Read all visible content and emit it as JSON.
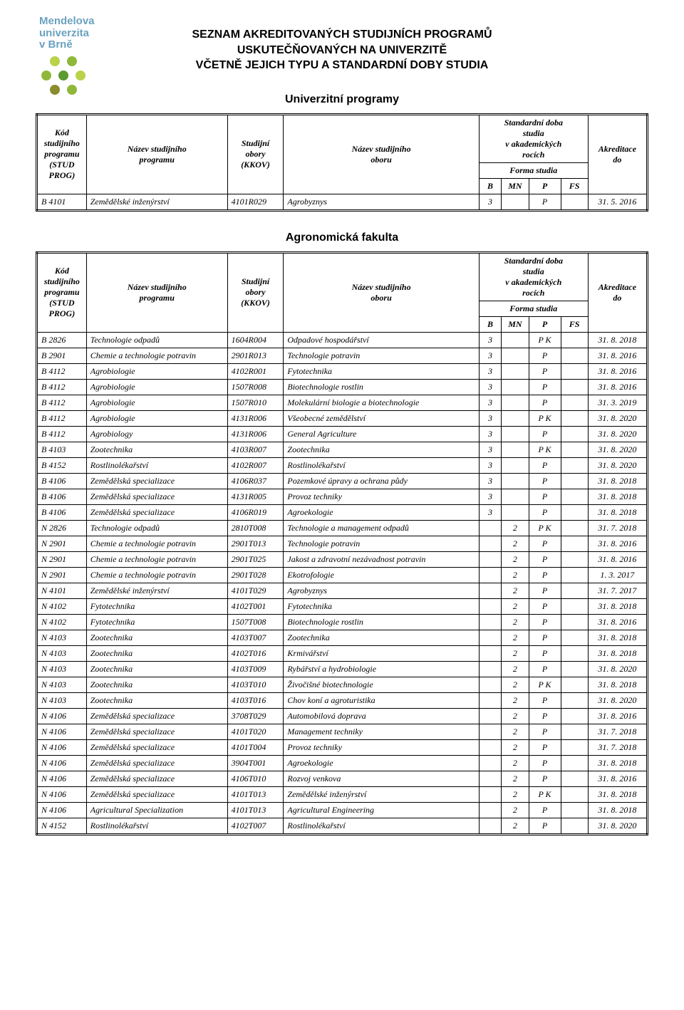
{
  "logo": {
    "line1": "Mendelova",
    "line2": "univerzita",
    "line3": "v Brně",
    "colors": {
      "text": "#6aa2c0",
      "dot_green_light": "#b9d24a",
      "dot_green_med": "#8fb83b",
      "dot_green_dark": "#5d9a2f",
      "dot_olive": "#8a8c2e"
    }
  },
  "header": {
    "line1": "SEZNAM AKREDITOVANÝCH STUDIJNÍCH PROGRAMŮ",
    "line2": "USKUTEČŇOVANÝCH NA UNIVERZITĚ",
    "line3": "VČETNĚ JEJICH TYPU A STANDARDNÍ DOBY STUDIA"
  },
  "section_univerzitni": "Univerzitní programy",
  "section_agronomicka": "Agronomická fakulta",
  "table_headers": {
    "kod": "Kód studijního programu (STUD PROG)",
    "kod_short_line1": "Kód",
    "kod_short_line2": "studijního",
    "kod_short_line3": "programu",
    "kod_short_line4": "(STUD",
    "kod_short_line5": "PROG)",
    "nazev_prog_l1": "Název studijního",
    "nazev_prog_l2": "programu",
    "studijni_l1": "Studijní",
    "studijni_l2": "obory",
    "studijni_l3": "(KKOV)",
    "nazev_obor_l1": "Název studijního",
    "nazev_obor_l2": "oboru",
    "std_doba_l1": "Standardní doba",
    "std_doba_l2": "studia",
    "std_doba_l3": "v akademických",
    "std_doba_l4": "rocích",
    "forma": "Forma studia",
    "akred_l1": "Akreditace",
    "akred_l2": "do",
    "B": "B",
    "MN": "MN",
    "P": "P",
    "FS": "FS"
  },
  "univerzitni_rows": [
    {
      "kod": "B 4101",
      "pname": "Zemědělské inženýrství",
      "kkov": "4101R029",
      "oname": "Agrobyznys",
      "b": "3",
      "mn": "",
      "p": "P",
      "fs": "",
      "akr": "31. 5. 2016"
    }
  ],
  "agronomicka_rows": [
    {
      "kod": "B 2826",
      "pname": "Technologie odpadů",
      "kkov": "1604R004",
      "oname": "Odpadové hospodářství",
      "b": "3",
      "mn": "",
      "p": "P K",
      "fs": "",
      "akr": "31. 8. 2018"
    },
    {
      "kod": "B 2901",
      "pname": "Chemie a technologie potravin",
      "kkov": "2901R013",
      "oname": "Technologie potravin",
      "b": "3",
      "mn": "",
      "p": "P",
      "fs": "",
      "akr": "31. 8. 2016"
    },
    {
      "kod": "B 4112",
      "pname": "Agrobiologie",
      "kkov": "4102R001",
      "oname": "Fytotechnika",
      "b": "3",
      "mn": "",
      "p": "P",
      "fs": "",
      "akr": "31. 8. 2016"
    },
    {
      "kod": "B 4112",
      "pname": "Agrobiologie",
      "kkov": "1507R008",
      "oname": "Biotechnologie rostlin",
      "b": "3",
      "mn": "",
      "p": "P",
      "fs": "",
      "akr": "31. 8. 2016"
    },
    {
      "kod": "B 4112",
      "pname": "Agrobiologie",
      "kkov": "1507R010",
      "oname": "Molekulární biologie a biotechnologie",
      "b": "3",
      "mn": "",
      "p": "P",
      "fs": "",
      "akr": "31. 3. 2019"
    },
    {
      "kod": "B 4112",
      "pname": "Agrobiologie",
      "kkov": "4131R006",
      "oname": "Všeobecné zemědělství",
      "b": "3",
      "mn": "",
      "p": "P K",
      "fs": "",
      "akr": "31. 8. 2020"
    },
    {
      "kod": "B 4112",
      "pname": "Agrobiology",
      "kkov": "4131R006",
      "oname": "General Agriculture",
      "b": "3",
      "mn": "",
      "p": "P",
      "fs": "",
      "akr": "31. 8. 2020"
    },
    {
      "kod": "B 4103",
      "pname": "Zootechnika",
      "kkov": "4103R007",
      "oname": "Zootechnika",
      "b": "3",
      "mn": "",
      "p": "P K",
      "fs": "",
      "akr": "31. 8. 2020"
    },
    {
      "kod": "B 4152",
      "pname": "Rostlinolékařství",
      "kkov": "4102R007",
      "oname": "Rostlinolékařství",
      "b": "3",
      "mn": "",
      "p": "P",
      "fs": "",
      "akr": "31. 8. 2020"
    },
    {
      "kod": "B 4106",
      "pname": "Zemědělská specializace",
      "kkov": "4106R037",
      "oname": "Pozemkové úpravy a ochrana půdy",
      "b": "3",
      "mn": "",
      "p": "P",
      "fs": "",
      "akr": "31. 8. 2018"
    },
    {
      "kod": "B 4106",
      "pname": "Zemědělská specializace",
      "kkov": "4131R005",
      "oname": "Provoz techniky",
      "b": "3",
      "mn": "",
      "p": "P",
      "fs": "",
      "akr": "31. 8. 2018"
    },
    {
      "kod": "B 4106",
      "pname": "Zemědělská specializace",
      "kkov": "4106R019",
      "oname": "Agroekologie",
      "b": "3",
      "mn": "",
      "p": "P",
      "fs": "",
      "akr": "31. 8. 2018"
    },
    {
      "kod": "N 2826",
      "pname": "Technologie odpadů",
      "kkov": "2810T008",
      "oname": "Technologie a management odpadů",
      "b": "",
      "mn": "2",
      "p": "P K",
      "fs": "",
      "akr": "31. 7. 2018"
    },
    {
      "kod": "N 2901",
      "pname": "Chemie a technologie potravin",
      "kkov": "2901T013",
      "oname": "Technologie potravin",
      "b": "",
      "mn": "2",
      "p": "P",
      "fs": "",
      "akr": "31. 8. 2016"
    },
    {
      "kod": "N 2901",
      "pname": "Chemie a technologie potravin",
      "kkov": "2901T025",
      "oname": "Jakost a zdravotní nezávadnost potravin",
      "b": "",
      "mn": "2",
      "p": "P",
      "fs": "",
      "akr": "31. 8. 2016"
    },
    {
      "kod": "N 2901",
      "pname": "Chemie a technologie potravin",
      "kkov": "2901T028",
      "oname": "Ekotrofologie",
      "b": "",
      "mn": "2",
      "p": "P",
      "fs": "",
      "akr": "1. 3. 2017"
    },
    {
      "kod": "N 4101",
      "pname": "Zemědělské inženýrství",
      "kkov": "4101T029",
      "oname": "Agrobyznys",
      "b": "",
      "mn": "2",
      "p": "P",
      "fs": "",
      "akr": "31. 7. 2017"
    },
    {
      "kod": "N 4102",
      "pname": "Fytotechnika",
      "kkov": "4102T001",
      "oname": "Fytotechnika",
      "b": "",
      "mn": "2",
      "p": "P",
      "fs": "",
      "akr": "31. 8. 2018"
    },
    {
      "kod": "N 4102",
      "pname": "Fytotechnika",
      "kkov": "1507T008",
      "oname": "Biotechnologie rostlin",
      "b": "",
      "mn": "2",
      "p": "P",
      "fs": "",
      "akr": "31. 8. 2016"
    },
    {
      "kod": "N 4103",
      "pname": "Zootechnika",
      "kkov": "4103T007",
      "oname": "Zootechnika",
      "b": "",
      "mn": "2",
      "p": "P",
      "fs": "",
      "akr": "31. 8. 2018"
    },
    {
      "kod": "N 4103",
      "pname": "Zootechnika",
      "kkov": "4102T016",
      "oname": "Krmivářství",
      "b": "",
      "mn": "2",
      "p": "P",
      "fs": "",
      "akr": "31. 8. 2018"
    },
    {
      "kod": "N 4103",
      "pname": "Zootechnika",
      "kkov": "4103T009",
      "oname": "Rybářství a hydrobiologie",
      "b": "",
      "mn": "2",
      "p": "P",
      "fs": "",
      "akr": "31. 8. 2020"
    },
    {
      "kod": "N 4103",
      "pname": "Zootechnika",
      "kkov": "4103T010",
      "oname": "Živočišné biotechnologie",
      "b": "",
      "mn": "2",
      "p": "P K",
      "fs": "",
      "akr": "31. 8. 2018"
    },
    {
      "kod": "N 4103",
      "pname": "Zootechnika",
      "kkov": "4103T016",
      "oname": "Chov koní a agroturistika",
      "b": "",
      "mn": "2",
      "p": "P",
      "fs": "",
      "akr": "31. 8. 2020"
    },
    {
      "kod": "N 4106",
      "pname": "Zemědělská specializace",
      "kkov": "3708T029",
      "oname": "Automobilová doprava",
      "b": "",
      "mn": "2",
      "p": "P",
      "fs": "",
      "akr": "31. 8. 2016"
    },
    {
      "kod": "N 4106",
      "pname": "Zemědělská specializace",
      "kkov": "4101T020",
      "oname": "Management techniky",
      "b": "",
      "mn": "2",
      "p": "P",
      "fs": "",
      "akr": "31. 7. 2018"
    },
    {
      "kod": "N 4106",
      "pname": "Zemědělská specializace",
      "kkov": "4101T004",
      "oname": "Provoz techniky",
      "b": "",
      "mn": "2",
      "p": "P",
      "fs": "",
      "akr": "31. 7. 2018"
    },
    {
      "kod": "N 4106",
      "pname": "Zemědělská specializace",
      "kkov": "3904T001",
      "oname": "Agroekologie",
      "b": "",
      "mn": "2",
      "p": "P",
      "fs": "",
      "akr": "31. 8. 2018"
    },
    {
      "kod": "N 4106",
      "pname": "Zemědělská specializace",
      "kkov": "4106T010",
      "oname": "Rozvoj venkova",
      "b": "",
      "mn": "2",
      "p": "P",
      "fs": "",
      "akr": "31. 8. 2016"
    },
    {
      "kod": "N 4106",
      "pname": "Zemědělská specializace",
      "kkov": "4101T013",
      "oname": "Zemědělské inženýrství",
      "b": "",
      "mn": "2",
      "p": "P K",
      "fs": "",
      "akr": "31. 8. 2018"
    },
    {
      "kod": "N 4106",
      "pname": "Agricultural Specialization",
      "kkov": "4101T013",
      "oname": "Agricultural Engineering",
      "b": "",
      "mn": "2",
      "p": "P",
      "fs": "",
      "akr": "31. 8. 2018"
    },
    {
      "kod": "N 4152",
      "pname": "Rostlinolékařství",
      "kkov": "4102T007",
      "oname": "Rostlinolékařství",
      "b": "",
      "mn": "2",
      "p": "P",
      "fs": "",
      "akr": "31. 8. 2020"
    }
  ]
}
